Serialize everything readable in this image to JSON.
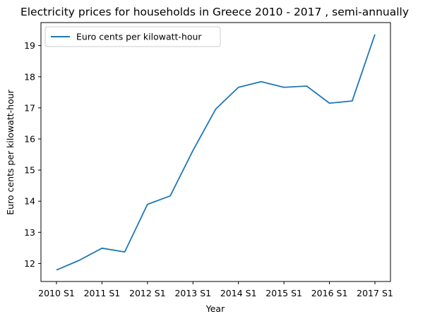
{
  "chart_data": {
    "type": "line",
    "title": "Electricity prices for households in Greece 2010 - 2017 , semi-annually",
    "xlabel": "Year",
    "ylabel": "Euro cents per kilowatt-hour",
    "categories": [
      "2010 S1",
      "2010 S2",
      "2011 S1",
      "2011 S2",
      "2012 S1",
      "2012 S2",
      "2013 S1",
      "2013 S2",
      "2014 S1",
      "2014 S2",
      "2015 S1",
      "2015 S2",
      "2016 S1",
      "2016 S2",
      "2017 S1"
    ],
    "x_tick_labels": [
      "2010 S1",
      "2011 S1",
      "2012 S1",
      "2013 S1",
      "2014 S1",
      "2015 S1",
      "2016 S1",
      "2017 S1"
    ],
    "y_ticks": [
      12,
      13,
      14,
      15,
      16,
      17,
      18,
      19
    ],
    "ylim": [
      11.42,
      19.74
    ],
    "grid": false,
    "legend_position": "upper-left",
    "series": [
      {
        "name": "Euro cents per kilowatt-hour",
        "color": "#1f77b4",
        "values": [
          11.79,
          12.1,
          12.49,
          12.37,
          13.9,
          14.17,
          15.63,
          16.96,
          17.66,
          17.84,
          17.66,
          17.7,
          17.15,
          17.22,
          19.36
        ]
      }
    ]
  }
}
